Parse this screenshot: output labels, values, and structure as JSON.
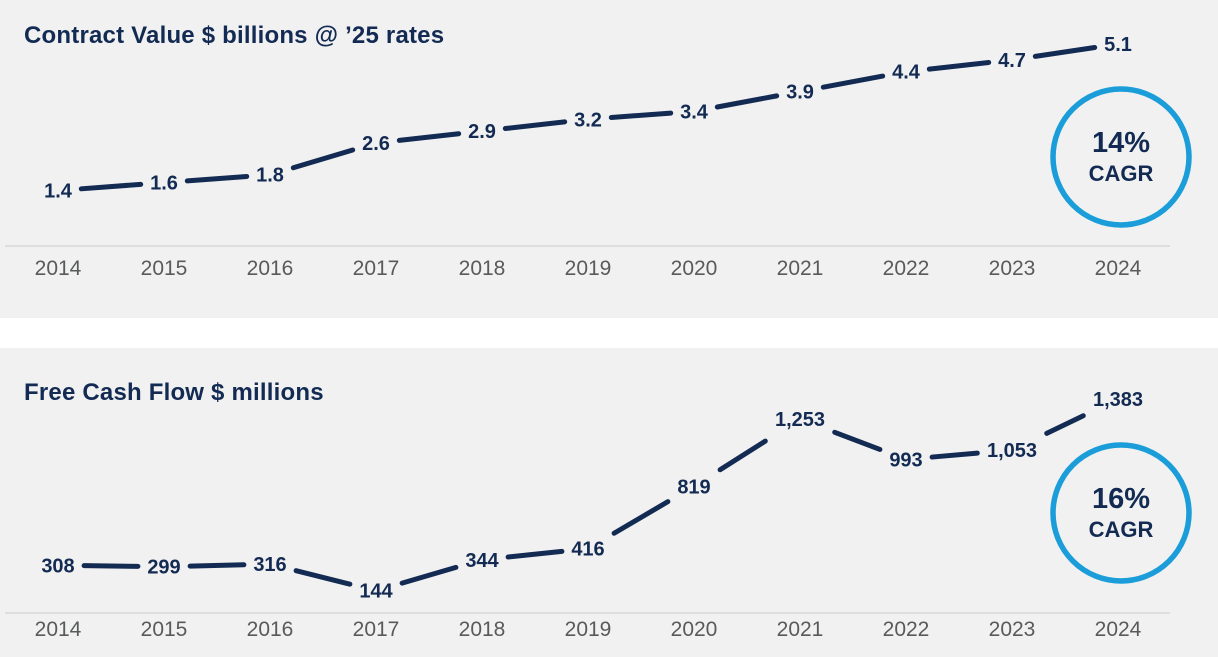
{
  "colors": {
    "panel_background": "#f1f1f1",
    "navy": "#132b53",
    "axis_line": "#d8d8d8",
    "year_label": "#595a5c",
    "badge_ring_blue": "#1a9dd9"
  },
  "chart_data": [
    {
      "type": "line",
      "title": "Contract Value $ billions @ ’25 rates",
      "categories": [
        "2014",
        "2015",
        "2016",
        "2017",
        "2018",
        "2019",
        "2020",
        "2021",
        "2022",
        "2023",
        "2024"
      ],
      "values": [
        1.4,
        1.6,
        1.8,
        2.6,
        2.9,
        3.2,
        3.4,
        3.9,
        4.4,
        4.7,
        5.1
      ],
      "value_labels": [
        "1.4",
        "1.6",
        "1.8",
        "2.6",
        "2.9",
        "3.2",
        "3.4",
        "3.9",
        "4.4",
        "4.7",
        "5.1"
      ],
      "ylim": [
        0,
        5.6
      ],
      "grid": false,
      "x_axis_line": true,
      "data_labels": "on-line",
      "legend": "none",
      "badge": {
        "value": "14%",
        "label": "CAGR",
        "position": "right"
      }
    },
    {
      "type": "line",
      "title": "Free Cash Flow $ millions",
      "categories": [
        "2014",
        "2015",
        "2016",
        "2017",
        "2018",
        "2019",
        "2020",
        "2021",
        "2022",
        "2023",
        "2024"
      ],
      "values": [
        308,
        299,
        316,
        144,
        344,
        416,
        819,
        1253,
        993,
        1053,
        1383
      ],
      "value_labels": [
        "308",
        "299",
        "316",
        "144",
        "344",
        "416",
        "819",
        "1,253",
        "993",
        "1,053",
        "1,383"
      ],
      "ylim": [
        0,
        1520
      ],
      "grid": false,
      "x_axis_line": true,
      "data_labels": "on-line",
      "legend": "none",
      "badge": {
        "value": "16%",
        "label": "CAGR",
        "position": "right"
      }
    }
  ]
}
